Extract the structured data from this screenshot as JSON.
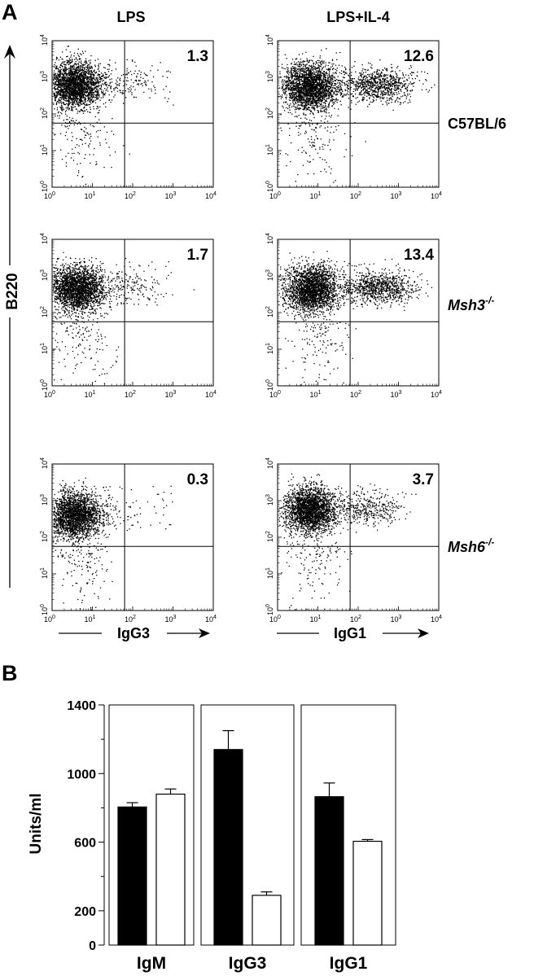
{
  "panel_a": {
    "letter": "A",
    "y_axis_label": "B220",
    "columns": [
      {
        "header": "LPS",
        "x_axis_label": "IgG3"
      },
      {
        "header": "LPS+IL-4",
        "x_axis_label": "IgG1"
      }
    ],
    "rows": [
      {
        "strain": "C57BL/6",
        "strain_italic": false,
        "superscript": ""
      },
      {
        "strain": "Msh3",
        "strain_italic": true,
        "superscript": "-/-"
      },
      {
        "strain": "Msh6",
        "strain_italic": true,
        "superscript": "-/-"
      }
    ],
    "plots": [
      {
        "column": 0,
        "row": 0,
        "percentage": "1.3",
        "cluster_x": 0.55,
        "cluster_y": 2.8,
        "tail_x": 1.7,
        "tail_density": 0.06
      },
      {
        "column": 1,
        "row": 0,
        "percentage": "12.6",
        "cluster_x": 0.8,
        "cluster_y": 2.75,
        "tail_x": 2.5,
        "tail_density": 0.35
      },
      {
        "column": 0,
        "row": 1,
        "percentage": "1.7",
        "cluster_x": 0.6,
        "cluster_y": 2.65,
        "tail_x": 1.8,
        "tail_density": 0.07
      },
      {
        "column": 1,
        "row": 1,
        "percentage": "13.4",
        "cluster_x": 0.85,
        "cluster_y": 2.65,
        "tail_x": 2.5,
        "tail_density": 0.37
      },
      {
        "column": 0,
        "row": 2,
        "percentage": "0.3",
        "cluster_x": 0.55,
        "cluster_y": 2.6,
        "tail_x": 1.5,
        "tail_density": 0.02
      },
      {
        "column": 1,
        "row": 2,
        "percentage": "3.7",
        "cluster_x": 0.8,
        "cluster_y": 2.75,
        "tail_x": 2.2,
        "tail_density": 0.15
      }
    ],
    "gate_x": 1.8,
    "gate_y": 1.75,
    "axis_ticks": {
      "bases": [
        "10",
        "10",
        "10",
        "10",
        "10"
      ],
      "exponents": [
        "0",
        "1",
        "2",
        "3",
        "4"
      ]
    },
    "point_color": "#000000"
  },
  "panel_b": {
    "letter": "B",
    "ylabel": "Units/ml",
    "colors": {
      "filled": "#000000",
      "open": "#ffffff"
    }
  },
  "chart_data": {
    "type": "bar",
    "categories": [
      "IgM",
      "IgG3",
      "IgG1"
    ],
    "series": [
      {
        "values": [
          805,
          1140,
          865
        ],
        "errors": [
          25,
          110,
          80
        ],
        "fill": "#000000"
      },
      {
        "values": [
          880,
          290,
          605
        ],
        "errors": [
          30,
          20,
          10
        ],
        "fill": "#ffffff"
      }
    ],
    "xlabel": "",
    "ylabel": "Units/ml",
    "ylim": [
      0,
      1400
    ],
    "yticks": [
      "0",
      "200",
      "600",
      "1000",
      "1400"
    ],
    "ytick_values": [
      0,
      200,
      600,
      1000,
      1400
    ],
    "minor_yticks": [
      400,
      800,
      1200
    ],
    "grid": false,
    "legend": "none"
  }
}
